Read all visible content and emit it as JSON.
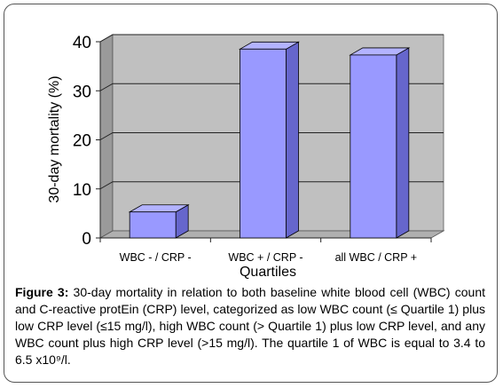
{
  "chart_data": {
    "type": "bar",
    "categories": [
      "WBC - / CRP -",
      "WBC + /  CRP -",
      "all WBC / CRP +"
    ],
    "values": [
      5.3,
      38.5,
      37.3
    ],
    "ylabel": "30-day mortality (%)",
    "xlabel": "Quartiles",
    "ylim": [
      0,
      40
    ],
    "yticks": [
      "0",
      "10",
      "20",
      "30",
      "40"
    ],
    "grid": true,
    "legend": "none",
    "bar_color": "#9999ff",
    "bar_side_color": "#6666cc",
    "bar_top_color": "#b3b3ff",
    "wall_color": "#c0c0c0"
  },
  "caption": {
    "label": "Figure 3:",
    "text": " 30-day mortality in relation to both baseline white blood cell (WBC) count and C-reactive protEin (CRP) level, categorized as low WBC count (≤ Quartile 1) plus low CRP level (≤15 mg/l), high WBC count (> Quartile 1) plus low CRP level, and any WBC count plus high CRP level (>15 mg/l). The quartile 1 of WBC is equal to 3.4 to 6.5 x10⁹/l."
  }
}
